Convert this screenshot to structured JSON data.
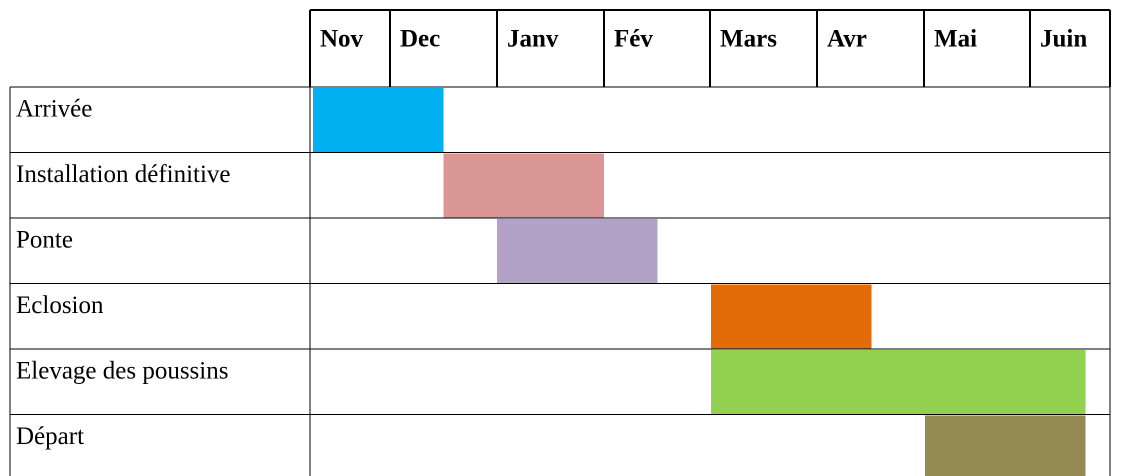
{
  "chart_data": {
    "type": "gantt",
    "categories": [
      "Nov",
      "Dec",
      "Janv",
      "Fév",
      "Mars",
      "Avr",
      "Mai",
      "Juin"
    ],
    "tasks": [
      {
        "name": "Arrivée",
        "start": 0,
        "end": 1.5,
        "color": "#00b0f0"
      },
      {
        "name": "Installation définitive",
        "start": 1.5,
        "end": 3,
        "color": "#da9694"
      },
      {
        "name": "Ponte",
        "start": 2,
        "end": 3.5,
        "color": "#b3a2c7"
      },
      {
        "name": "Eclosion",
        "start": 4,
        "end": 5.5,
        "color": "#e36c09"
      },
      {
        "name": "Elevage des poussins",
        "start": 4,
        "end": 7.5,
        "color": "#92d050"
      },
      {
        "name": "Départ",
        "start": 6,
        "end": 7.5,
        "color": "#948a54"
      }
    ]
  }
}
